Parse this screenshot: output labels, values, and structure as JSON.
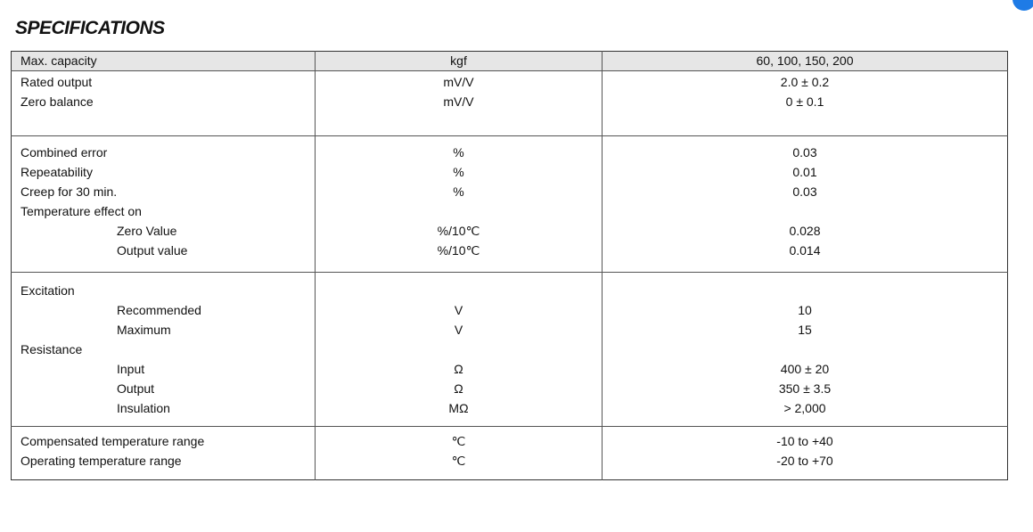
{
  "title": "SPECIFICATIONS",
  "accent_color": "#1e7be6",
  "header": {
    "label": "Max. capacity",
    "unit": "kgf",
    "value": "60, 100, 150, 200"
  },
  "groups": [
    {
      "rows": [
        {
          "label": "Rated output",
          "unit": "mV/V",
          "value": "2.0 ± 0.2",
          "indent": false
        },
        {
          "label": "Zero balance",
          "unit": "mV/V",
          "value": "0 ± 0.1",
          "indent": false
        }
      ]
    },
    {
      "rows": [
        {
          "label": "Combined error",
          "unit": "%",
          "value": "0.03",
          "indent": false
        },
        {
          "label": "Repeatability",
          "unit": "%",
          "value": "0.01",
          "indent": false
        },
        {
          "label": "Creep for 30 min.",
          "unit": "%",
          "value": "0.03",
          "indent": false
        },
        {
          "label": "Temperature effect on",
          "unit": "",
          "value": "",
          "indent": false
        },
        {
          "label": "Zero Value",
          "unit": "%/10℃",
          "value": "0.028",
          "indent": true
        },
        {
          "label": "Output value",
          "unit": "%/10℃",
          "value": "0.014",
          "indent": true
        }
      ]
    },
    {
      "rows": [
        {
          "label": "Excitation",
          "unit": "",
          "value": "",
          "indent": false
        },
        {
          "label": "Recommended",
          "unit": "V",
          "value": "10",
          "indent": true
        },
        {
          "label": "Maximum",
          "unit": "V",
          "value": "15",
          "indent": true
        },
        {
          "label": "Resistance",
          "unit": "",
          "value": "",
          "indent": false
        },
        {
          "label": "Input",
          "unit": "Ω",
          "value": "400 ± 20",
          "indent": true
        },
        {
          "label": "Output",
          "unit": "Ω",
          "value": "350 ± 3.5",
          "indent": true
        },
        {
          "label": "Insulation",
          "unit": "MΩ",
          "value": "> 2,000",
          "indent": true
        }
      ]
    },
    {
      "rows": [
        {
          "label": "Compensated temperature range",
          "unit": "℃",
          "value": "-10 to +40",
          "indent": false
        },
        {
          "label": "Operating temperature range",
          "unit": "℃",
          "value": "-20 to +70",
          "indent": false
        }
      ]
    }
  ]
}
